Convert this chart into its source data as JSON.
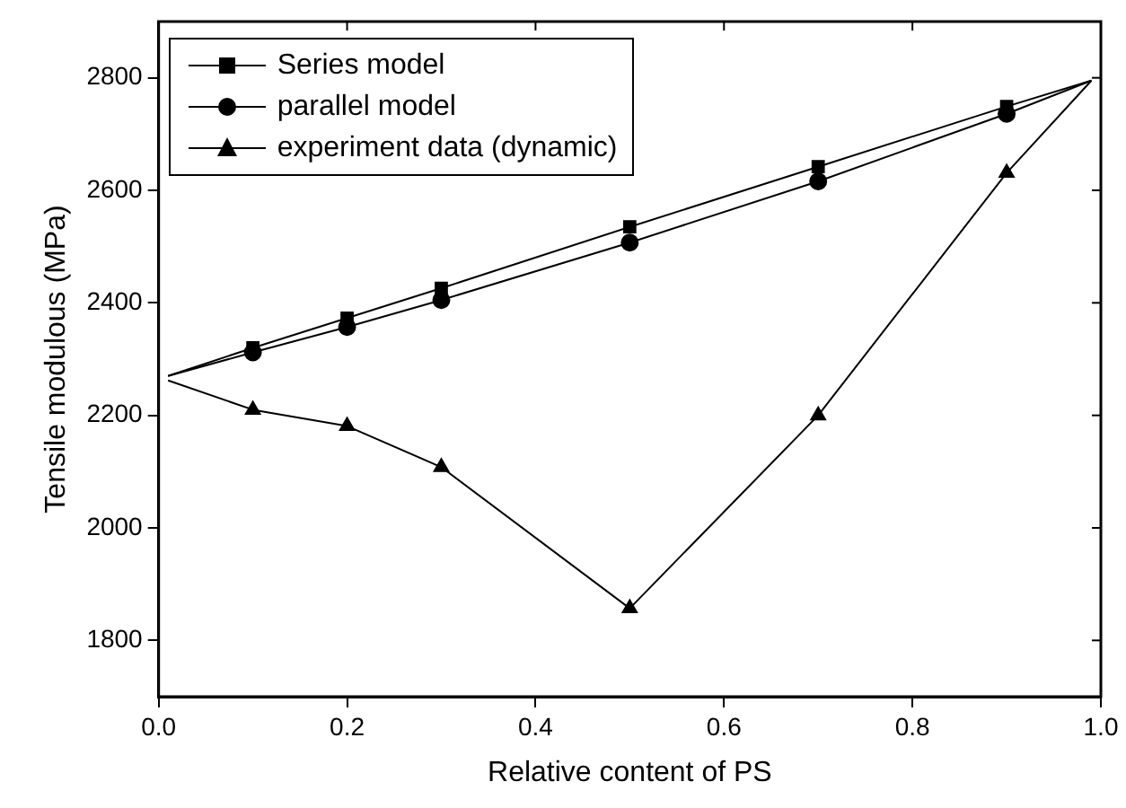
{
  "chart_data": {
    "type": "line",
    "xlabel": "Relative content of PS",
    "ylabel": "Tensile modulous (MPa)",
    "xlim": [
      0,
      1
    ],
    "xticks": [
      {
        "value": 0,
        "label": "0.0"
      },
      0.2,
      0.4,
      0.6,
      0.8,
      {
        "value": 1,
        "label": "1.0"
      }
    ],
    "ylim": [
      1700,
      2900
    ],
    "yticks": [
      1800,
      2000,
      2200,
      2400,
      2600,
      2800
    ],
    "grid": false,
    "legend": "top left",
    "line_style": "solid",
    "series": [
      {
        "name": "Series model",
        "color": "#000000",
        "marker": "square",
        "x": [
          0.1,
          0.2,
          0.3,
          0.5,
          0.7,
          0.9
        ],
        "values": [
          2320,
          2373,
          2426,
          2535,
          2642,
          2749
        ]
      },
      {
        "name": "parallel model",
        "color": "#000000",
        "marker": "circle",
        "x": [
          0.1,
          0.2,
          0.3,
          0.5,
          0.7,
          0.9
        ],
        "values": [
          2312,
          2357,
          2405,
          2507,
          2616,
          2736
        ]
      },
      {
        "name": "experiment data (dynamic)",
        "color": "#000000",
        "marker": "triangle",
        "x": [
          0.1,
          0.2,
          0.3,
          0.5,
          0.7,
          0.9
        ],
        "values": [
          2210,
          2181,
          2108,
          1857,
          2200,
          2631
        ]
      },
      {
        "color": "#000000",
        "marker": "none",
        "x": [
          0.01,
          0.1,
          0.5,
          0.9,
          0.99
        ],
        "values": [
          2270,
          2320,
          null,
          2749,
          2795
        ]
      },
      {
        "color": "#000000",
        "marker": "none",
        "x": [
          0.01,
          0.1,
          0.5,
          0.9,
          0.99
        ],
        "values": [
          2270,
          2312,
          null,
          2736,
          2795
        ]
      },
      {
        "color": "#000000",
        "marker": "none",
        "x": [
          0.01,
          0.1,
          0.5,
          0.9,
          0.99
        ],
        "values": [
          2262,
          2210,
          null,
          2631,
          2795
        ]
      }
    ]
  }
}
